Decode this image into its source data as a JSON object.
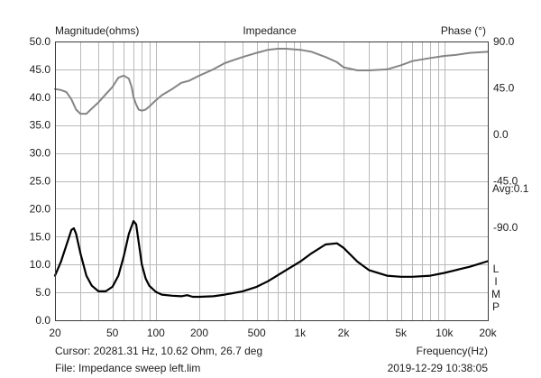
{
  "chart_data": {
    "type": "line",
    "title": "Impedance",
    "ylabel_left": "Magnitude(ohms)",
    "ylabel_right": "Phase (°)",
    "xlabel": "Frequency(Hz)",
    "x_scale": "log",
    "xlim": [
      20,
      20000
    ],
    "ylim_left": [
      0,
      50
    ],
    "ylim_right": [
      -180,
      90
    ],
    "x_tick_labels": [
      {
        "value": 20,
        "label": "20"
      },
      {
        "value": 50,
        "label": "50"
      },
      {
        "value": 100,
        "label": "100"
      },
      {
        "value": 200,
        "label": "200"
      },
      {
        "value": 500,
        "label": "500"
      },
      {
        "value": 1000,
        "label": "1k"
      },
      {
        "value": 2000,
        "label": "2k"
      },
      {
        "value": 5000,
        "label": "5k"
      },
      {
        "value": 10000,
        "label": "10k"
      },
      {
        "value": 20000,
        "label": "20k"
      }
    ],
    "y_ticks_left": [
      {
        "value": 0,
        "label": "0.0"
      },
      {
        "value": 5,
        "label": "5.0"
      },
      {
        "value": 10,
        "label": "10.0"
      },
      {
        "value": 15,
        "label": "15.0"
      },
      {
        "value": 20,
        "label": "20.0"
      },
      {
        "value": 25,
        "label": "25.0"
      },
      {
        "value": 30,
        "label": "30.0"
      },
      {
        "value": 35,
        "label": "35.0"
      },
      {
        "value": 40,
        "label": "40.0"
      },
      {
        "value": 45,
        "label": "45.0"
      },
      {
        "value": 50,
        "label": "50.0"
      }
    ],
    "y_ticks_right": [
      {
        "value": 90,
        "label": "90.0"
      },
      {
        "value": 45,
        "label": "45.0"
      },
      {
        "value": 0,
        "label": "0.0"
      },
      {
        "value": -45,
        "label": "-45.0"
      },
      {
        "value": -90,
        "label": "-90.0"
      }
    ],
    "right_side_label": "Avg:0.1",
    "right_legend_letters": [
      "L",
      "I",
      "M",
      "P"
    ],
    "grid": true,
    "series": [
      {
        "axis": "left",
        "color": "#000000",
        "x": [
          20,
          22,
          24,
          26,
          27,
          28,
          30,
          33,
          36,
          40,
          45,
          50,
          55,
          60,
          65,
          70,
          73,
          76,
          80,
          85,
          90,
          100,
          110,
          130,
          150,
          165,
          180,
          200,
          250,
          300,
          400,
          500,
          600,
          800,
          1000,
          1200,
          1500,
          1800,
          2000,
          2500,
          3000,
          4000,
          5000,
          6000,
          8000,
          10000,
          12000,
          15000,
          20000
        ],
        "values": [
          8.0,
          10.5,
          13.5,
          16.2,
          16.5,
          15.5,
          12.0,
          8.0,
          6.2,
          5.2,
          5.2,
          6.0,
          8.0,
          11.5,
          15.5,
          17.8,
          17.2,
          14.0,
          10.0,
          7.5,
          6.2,
          5.1,
          4.6,
          4.4,
          4.3,
          4.5,
          4.2,
          4.2,
          4.3,
          4.6,
          5.2,
          6.0,
          7.0,
          9.0,
          10.5,
          12.0,
          13.6,
          13.8,
          13.0,
          10.5,
          9.0,
          8.0,
          7.8,
          7.8,
          8.0,
          8.5,
          9.0,
          9.6,
          10.6
        ]
      },
      {
        "axis": "right",
        "color": "#858585",
        "x": [
          20,
          22,
          24,
          26,
          28,
          30,
          33,
          36,
          40,
          45,
          50,
          55,
          60,
          65,
          68,
          70,
          73,
          76,
          80,
          85,
          90,
          100,
          110,
          130,
          150,
          170,
          200,
          250,
          300,
          400,
          500,
          600,
          700,
          800,
          1000,
          1200,
          1500,
          1800,
          2000,
          2500,
          3000,
          4000,
          5000,
          6000,
          8000,
          10000,
          12000,
          15000,
          20000
        ],
        "values": [
          44,
          43,
          41,
          34,
          24,
          20,
          20,
          25,
          31,
          39,
          46,
          55,
          57,
          54,
          46,
          36,
          29,
          24,
          23,
          24,
          27,
          33,
          38,
          44,
          50,
          52,
          57,
          63,
          69,
          75,
          79,
          82,
          83,
          83,
          82,
          80,
          75,
          70,
          65,
          62,
          62,
          63,
          67,
          71,
          74,
          76,
          77,
          79,
          80
        ]
      }
    ]
  },
  "footer": {
    "cursor": "Cursor: 20281.31 Hz, 10.62 Ohm, 26.7 deg",
    "file": "File: Impedance sweep left.lim",
    "datetime": "2019-12-29 10:38:05"
  }
}
